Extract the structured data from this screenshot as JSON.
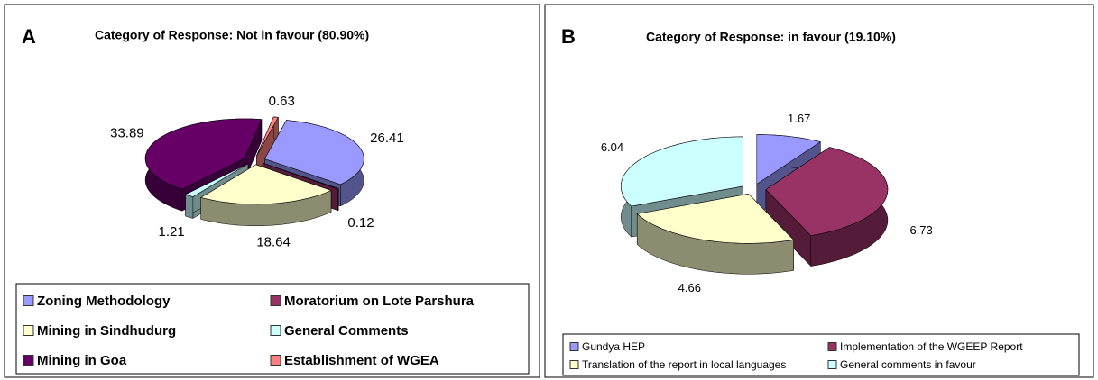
{
  "chart_data": [
    {
      "type": "pie",
      "panel_label": "A",
      "title": "Category of Response: Not in favour (80.90%)",
      "categories": [
        "Zoning Methodology",
        "Moratorium on Lote Parshura",
        "Mining in Sindhudurg",
        "General Comments",
        "Mining in Goa",
        "Establishment of WGEA"
      ],
      "values": [
        26.41,
        0.12,
        18.64,
        1.21,
        33.89,
        0.63
      ],
      "colors": [
        "#9999ff",
        "#993366",
        "#ffffcc",
        "#ccffff",
        "#660066",
        "#ff8080"
      ]
    },
    {
      "type": "pie",
      "panel_label": "B",
      "title": "Category of Response: in favour (19.10%)",
      "categories": [
        "Gundya HEP",
        "Implementation of the WGEEP Report",
        "Translation of the report in local languages",
        "General comments in favour"
      ],
      "values": [
        1.67,
        6.73,
        4.66,
        6.04
      ],
      "colors": [
        "#9999ff",
        "#993366",
        "#ffffcc",
        "#ccffff"
      ]
    }
  ]
}
